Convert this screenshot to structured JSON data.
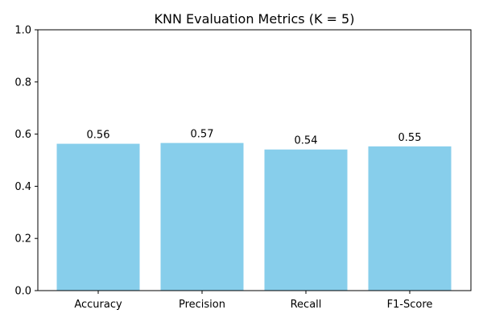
{
  "chart_data": {
    "type": "bar",
    "title": "KNN Evaluation Metrics (K = 5)",
    "categories": [
      "Accuracy",
      "Precision",
      "Recall",
      "F1-Score"
    ],
    "values": [
      0.563,
      0.566,
      0.541,
      0.553
    ],
    "data_labels": [
      "0.56",
      "0.57",
      "0.54",
      "0.55"
    ],
    "ylim": [
      0,
      1.0
    ],
    "yticks": [
      0.0,
      0.2,
      0.4,
      0.6,
      0.8,
      1.0
    ],
    "ytick_labels": [
      "0.0",
      "0.2",
      "0.4",
      "0.6",
      "0.8",
      "1.0"
    ],
    "xlabel": "",
    "ylabel": "",
    "grid": false,
    "bar_color": "#87CEEB"
  }
}
